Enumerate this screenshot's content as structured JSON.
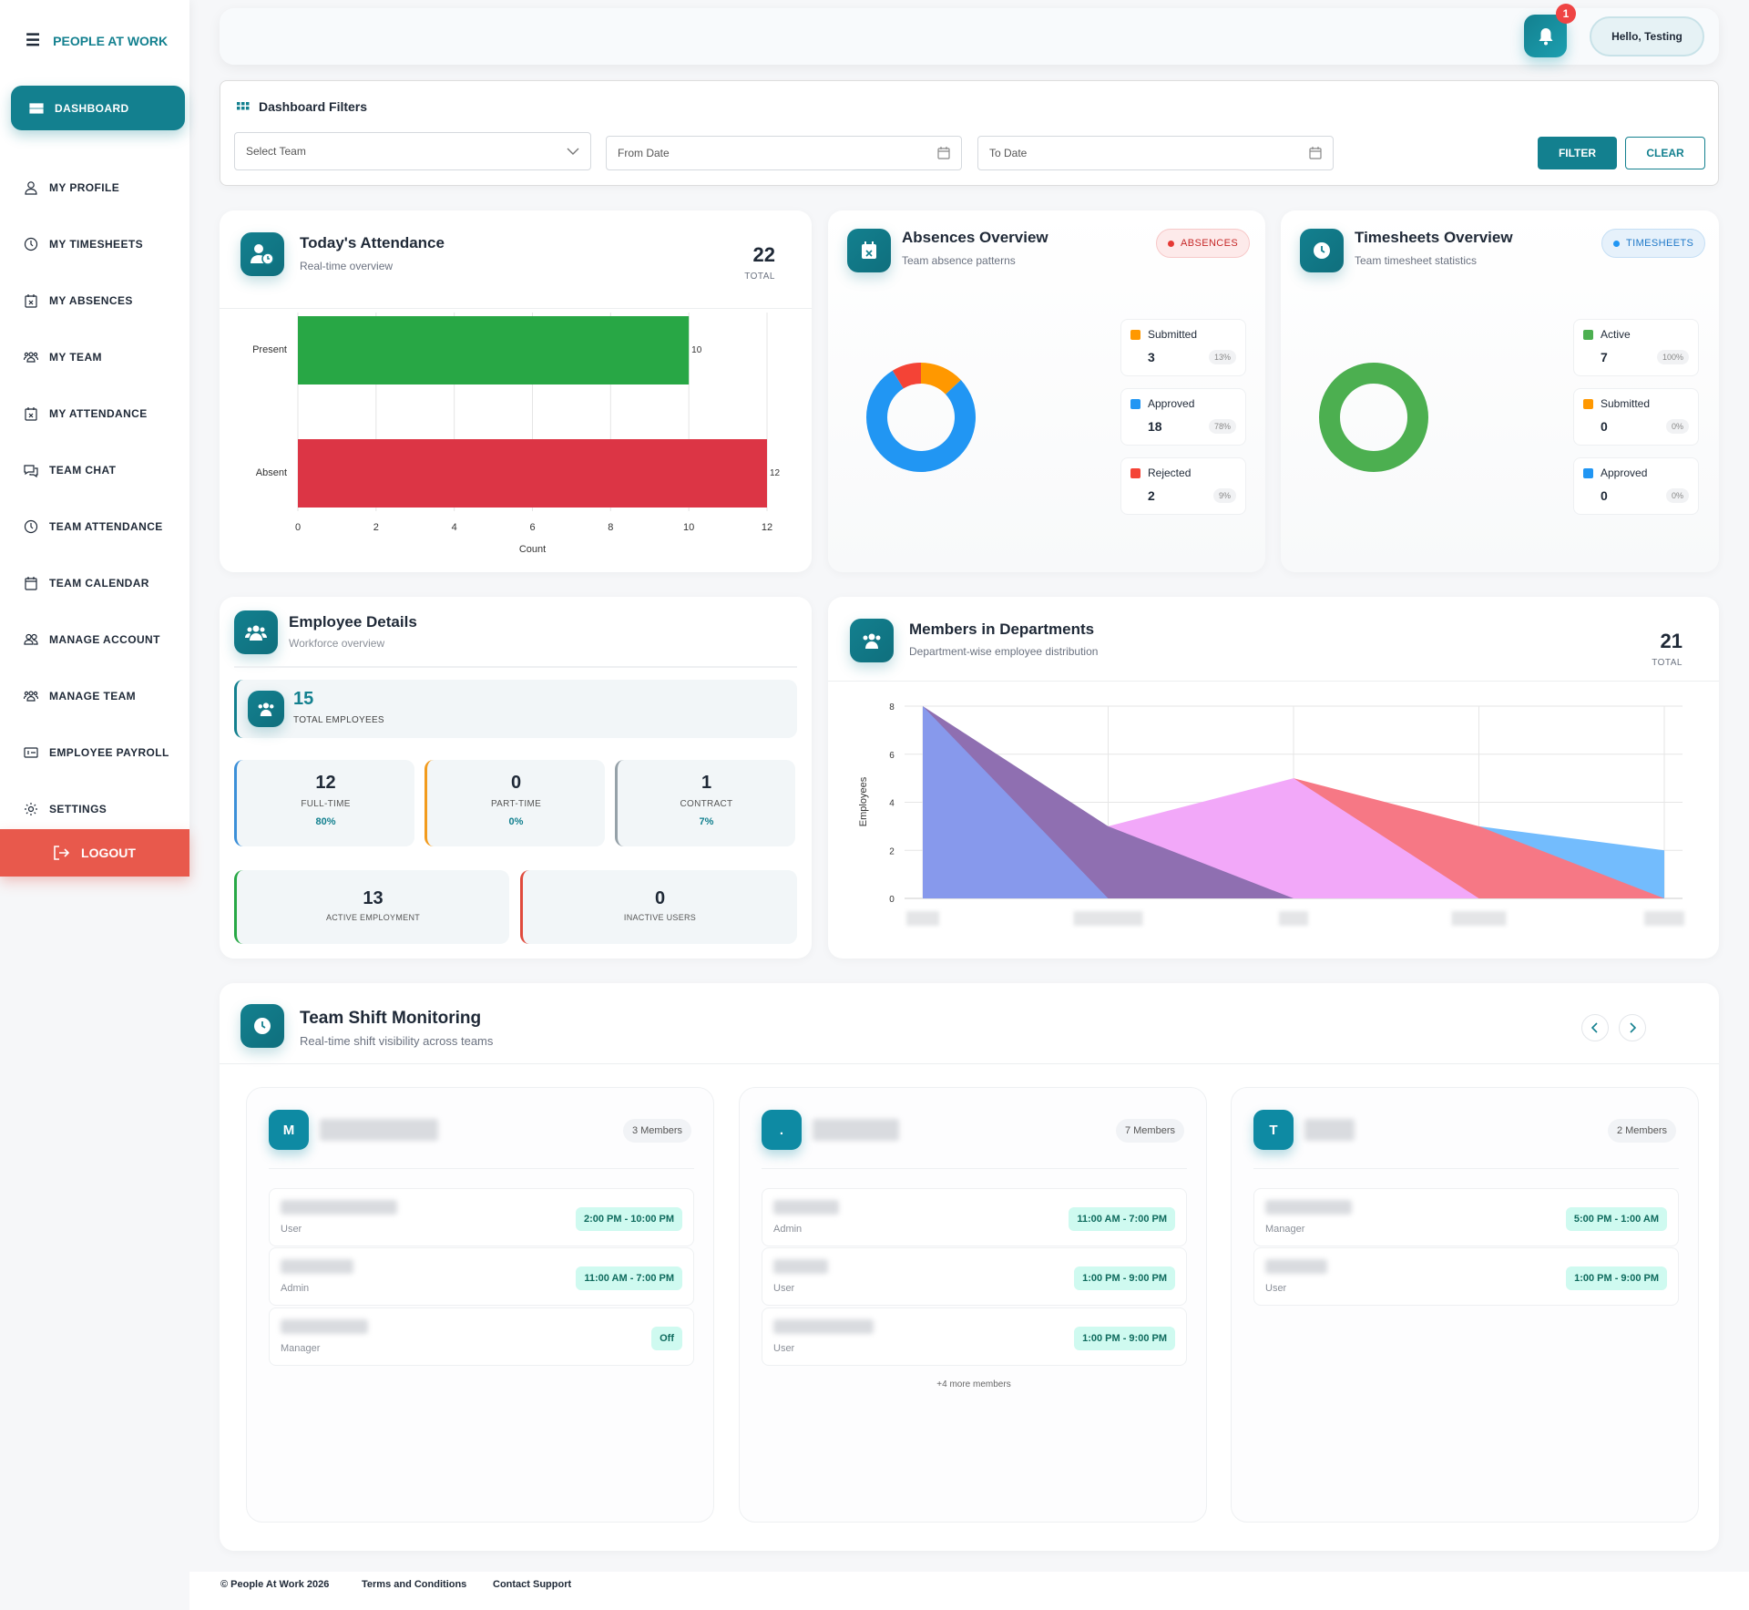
{
  "app": {
    "brand": "PEOPLE AT WORK"
  },
  "sidebar": {
    "items": [
      {
        "label": "DASHBOARD",
        "icon": "grid-icon",
        "active": true
      },
      {
        "label": "MY PROFILE",
        "icon": "user-icon"
      },
      {
        "label": "MY TIMESHEETS",
        "icon": "clock-icon"
      },
      {
        "label": "MY ABSENCES",
        "icon": "calendar-x-icon"
      },
      {
        "label": "MY TEAM",
        "icon": "team-icon"
      },
      {
        "label": "MY ATTENDANCE",
        "icon": "calendar-x-icon"
      },
      {
        "label": "TEAM CHAT",
        "icon": "chat-icon"
      },
      {
        "label": "TEAM ATTENDANCE",
        "icon": "clock-icon"
      },
      {
        "label": "TEAM CALENDAR",
        "icon": "calendar-icon"
      },
      {
        "label": "MANAGE ACCOUNT",
        "icon": "users-icon"
      },
      {
        "label": "MANAGE TEAM",
        "icon": "team-icon"
      },
      {
        "label": "EMPLOYEE PAYROLL",
        "icon": "payroll-icon"
      },
      {
        "label": "SETTINGS",
        "icon": "gear-icon"
      }
    ],
    "logout": "LOGOUT"
  },
  "header": {
    "notifications": "1",
    "greeting": "Hello, Testing"
  },
  "filters": {
    "title": "Dashboard Filters",
    "team_placeholder": "Select Team",
    "from_placeholder": "From Date",
    "to_placeholder": "To Date",
    "filter_label": "FILTER",
    "clear_label": "CLEAR"
  },
  "attendance": {
    "title": "Today's Attendance",
    "subtitle": "Real-time overview",
    "total": "22",
    "total_label": "TOTAL"
  },
  "absences": {
    "title": "Absences Overview",
    "subtitle": "Team absence patterns",
    "badge": "ABSENCES",
    "stats": [
      {
        "label": "Submitted",
        "value": "3",
        "pct": "13%",
        "color": "#ff9800"
      },
      {
        "label": "Approved",
        "value": "18",
        "pct": "78%",
        "color": "#2196f3"
      },
      {
        "label": "Rejected",
        "value": "2",
        "pct": "9%",
        "color": "#f44336"
      }
    ]
  },
  "timesheets": {
    "title": "Timesheets Overview",
    "subtitle": "Team timesheet statistics",
    "badge": "TIMESHEETS",
    "stats": [
      {
        "label": "Active",
        "value": "7",
        "pct": "100%",
        "color": "#4caf50"
      },
      {
        "label": "Submitted",
        "value": "0",
        "pct": "0%",
        "color": "#ff9800"
      },
      {
        "label": "Approved",
        "value": "0",
        "pct": "0%",
        "color": "#2196f3"
      }
    ]
  },
  "employees": {
    "title": "Employee Details",
    "subtitle": "Workforce overview",
    "total": "15",
    "total_label": "TOTAL EMPLOYEES",
    "types": [
      {
        "value": "12",
        "label": "FULL-TIME",
        "pct": "80%",
        "color": "#3b8fd8"
      },
      {
        "value": "0",
        "label": "PART-TIME",
        "pct": "0%",
        "color": "#f29b1d"
      },
      {
        "value": "1",
        "label": "CONTRACT",
        "pct": "7%",
        "color": "#95a1a8"
      }
    ],
    "status": [
      {
        "value": "13",
        "label": "ACTIVE EMPLOYMENT",
        "color": "#27a845"
      },
      {
        "value": "0",
        "label": "INACTIVE USERS",
        "color": "#e04a3c"
      }
    ]
  },
  "departments": {
    "title": "Members in Departments",
    "subtitle": "Department-wise employee distribution",
    "total": "21",
    "total_label": "TOTAL"
  },
  "chart_data": [
    {
      "type": "bar",
      "orientation": "horizontal",
      "categories": [
        "Present",
        "Absent"
      ],
      "values": [
        10,
        12
      ],
      "colors": [
        "#28a745",
        "#dc3545"
      ],
      "xlabel": "Count",
      "xlim": [
        0,
        12
      ],
      "xticks": [
        0,
        2,
        4,
        6,
        8,
        10,
        12
      ]
    },
    {
      "type": "pie",
      "donut": true,
      "title": "Absences Overview",
      "labels": [
        "Submitted",
        "Approved",
        "Rejected"
      ],
      "values": [
        3,
        18,
        2
      ],
      "colors": [
        "#ff9800",
        "#2196f3",
        "#f44336"
      ]
    },
    {
      "type": "pie",
      "donut": true,
      "title": "Timesheets Overview",
      "labels": [
        "Active",
        "Submitted",
        "Approved"
      ],
      "values": [
        7,
        0,
        0
      ],
      "colors": [
        "#4caf50",
        "#ff9800",
        "#2196f3"
      ]
    },
    {
      "type": "area",
      "title": "Members in Departments",
      "ylabel": "Employees",
      "ylim": [
        0,
        8
      ],
      "yticks": [
        0,
        2,
        4,
        6,
        8
      ],
      "x_count": 5,
      "series": [
        {
          "values": [
            8,
            0,
            null,
            null,
            null
          ],
          "color": "#8799ec"
        },
        {
          "values": [
            8,
            3,
            0,
            null,
            null
          ],
          "color": "#8f6fb1"
        },
        {
          "values": [
            null,
            3,
            5,
            0,
            null
          ],
          "color": "#f2a8f9"
        },
        {
          "values": [
            null,
            null,
            5,
            3,
            0
          ],
          "color": "#f67885"
        },
        {
          "values": [
            null,
            null,
            null,
            3,
            2
          ],
          "color": "#73bcfd"
        }
      ]
    }
  ],
  "shifts": {
    "title": "Team Shift Monitoring",
    "subtitle": "Real-time shift visibility across teams",
    "teams": [
      {
        "initial": "M",
        "members": "3 Members",
        "rows": [
          {
            "role": "User",
            "shift": "2:00 PM - 10:00 PM"
          },
          {
            "role": "Admin",
            "shift": "11:00 AM - 7:00 PM"
          },
          {
            "role": "Manager",
            "shift": "Off"
          }
        ],
        "more": ""
      },
      {
        "initial": ".",
        "members": "7 Members",
        "rows": [
          {
            "role": "Admin",
            "shift": "11:00 AM - 7:00 PM"
          },
          {
            "role": "User",
            "shift": "1:00 PM - 9:00 PM"
          },
          {
            "role": "User",
            "shift": "1:00 PM - 9:00 PM"
          }
        ],
        "more": "+4 more members"
      },
      {
        "initial": "T",
        "members": "2 Members",
        "rows": [
          {
            "role": "Manager",
            "shift": "5:00 PM - 1:00 AM"
          },
          {
            "role": "User",
            "shift": "1:00 PM - 9:00 PM"
          }
        ],
        "more": ""
      }
    ]
  },
  "footer": {
    "copyright": "© People At Work 2026",
    "terms": "Terms and Conditions",
    "support": "Contact Support"
  }
}
